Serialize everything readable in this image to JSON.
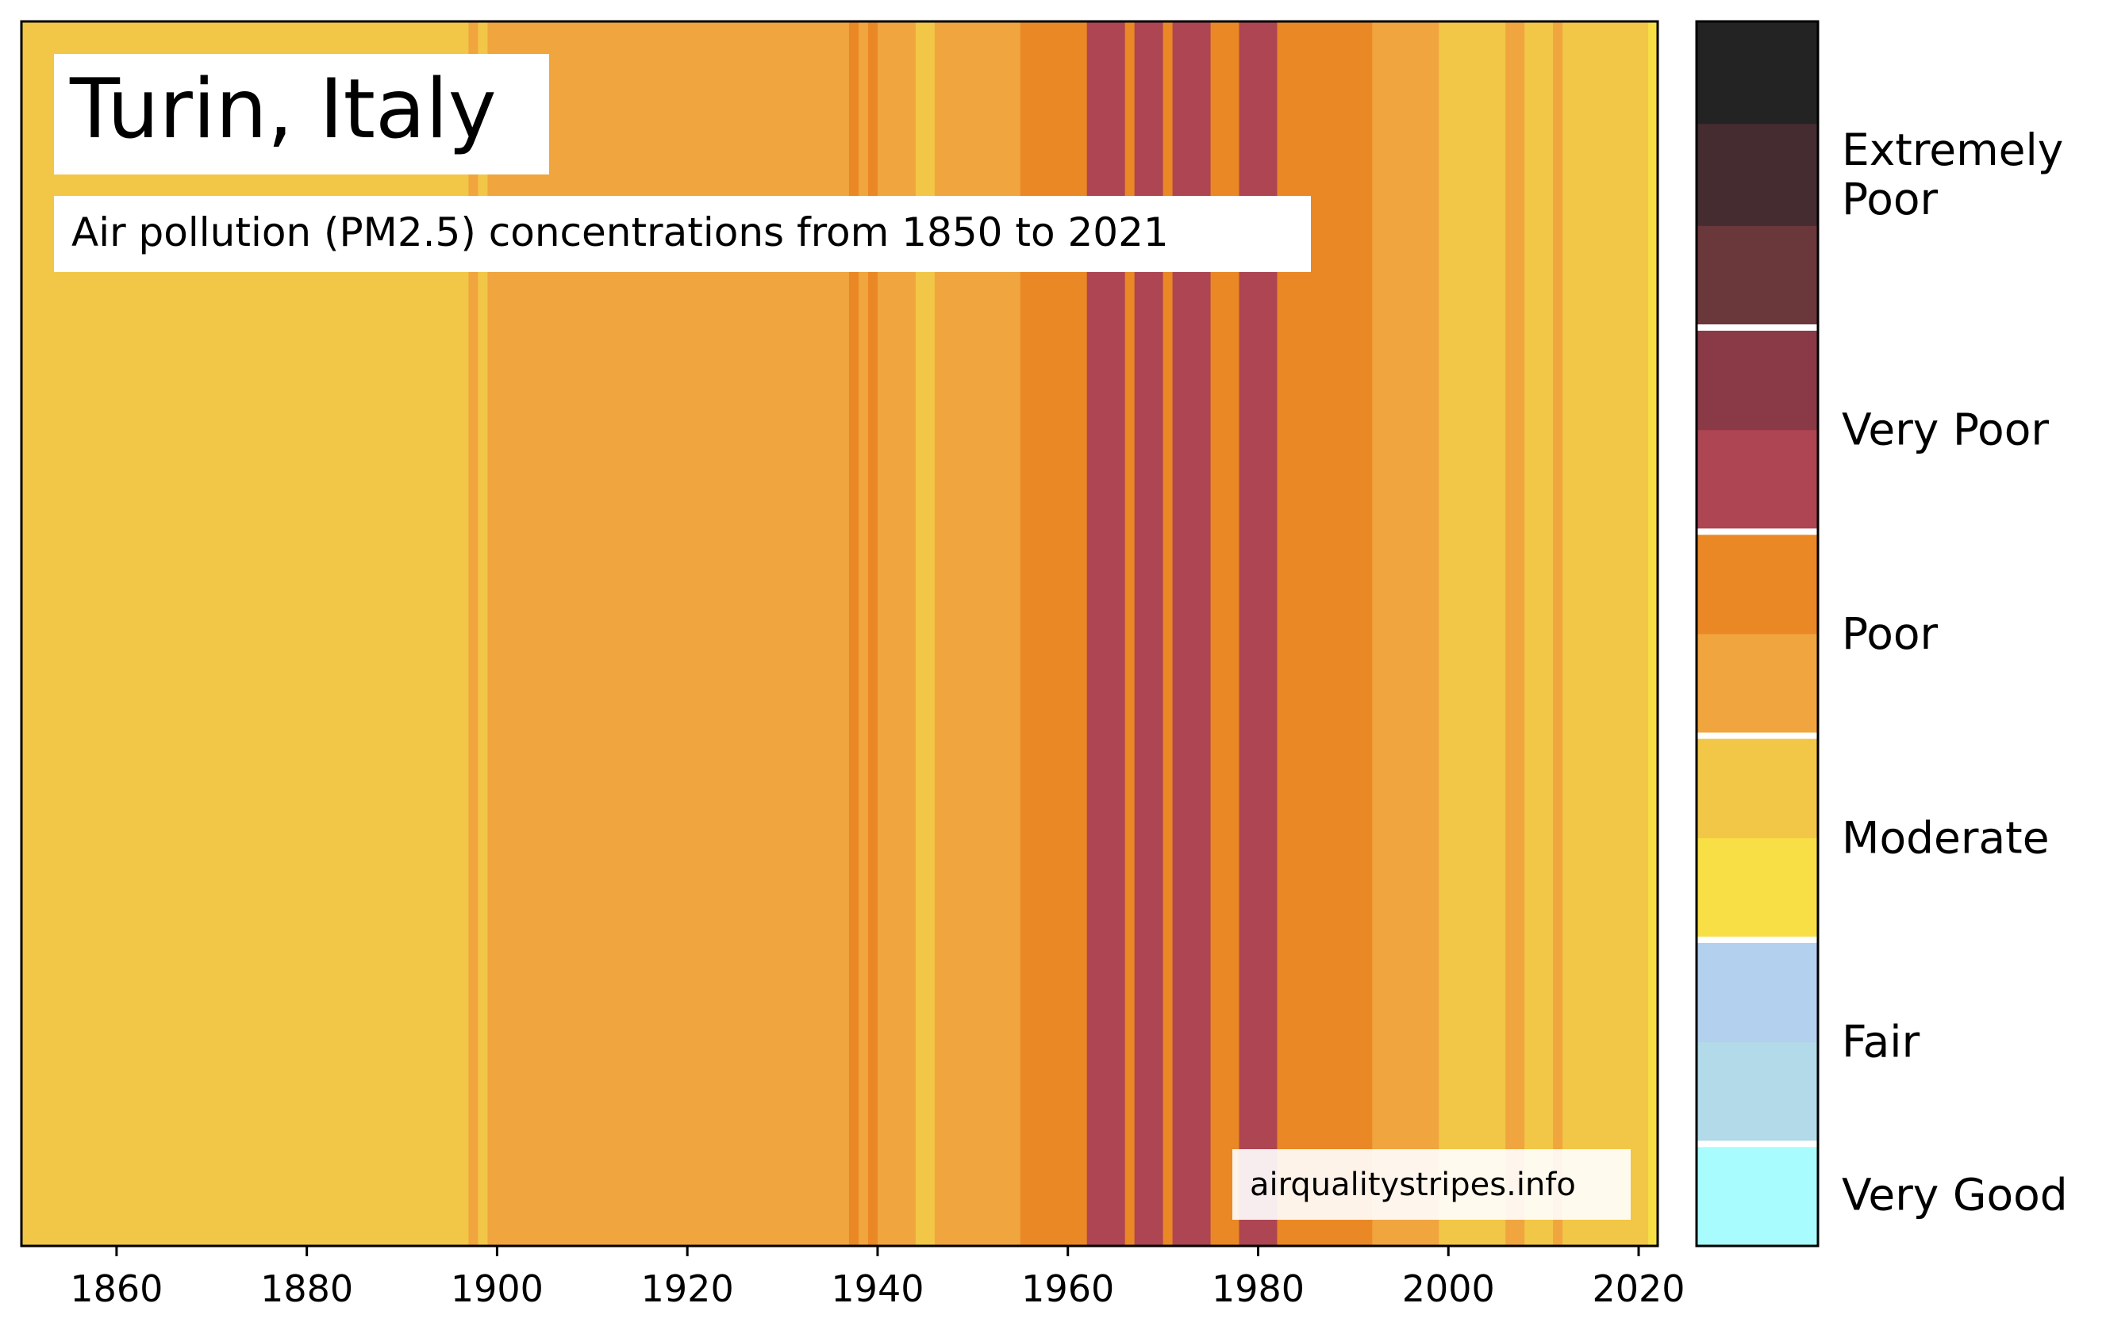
{
  "chart_data": {
    "type": "heatmap",
    "title": "Turin, Italy",
    "subtitle": "Air pollution (PM2.5) concentrations from 1850 to 2021",
    "watermark": "airqualitystripes.info",
    "xlim": [
      1850,
      2022
    ],
    "x_ticks": [
      1860,
      1880,
      1900,
      1920,
      1940,
      1960,
      1980,
      2000,
      2020
    ],
    "stripes": [
      {
        "start": 1850,
        "end": 1897,
        "category": "Moderate",
        "color": "#f2c647"
      },
      {
        "start": 1897,
        "end": 1898,
        "category": "Poor",
        "color": "#f0a53f"
      },
      {
        "start": 1898,
        "end": 1899,
        "category": "Moderate",
        "color": "#f2c647"
      },
      {
        "start": 1899,
        "end": 1937,
        "category": "Poor",
        "color": "#f0a53f"
      },
      {
        "start": 1937,
        "end": 1938,
        "category": "Poor",
        "color": "#e98825"
      },
      {
        "start": 1938,
        "end": 1939,
        "category": "Poor",
        "color": "#f0a53f"
      },
      {
        "start": 1939,
        "end": 1940,
        "category": "Poor",
        "color": "#e98825"
      },
      {
        "start": 1940,
        "end": 1944,
        "category": "Poor",
        "color": "#f0a53f"
      },
      {
        "start": 1944,
        "end": 1946,
        "category": "Moderate",
        "color": "#f2c647"
      },
      {
        "start": 1946,
        "end": 1955,
        "category": "Poor",
        "color": "#f0a53f"
      },
      {
        "start": 1955,
        "end": 1962,
        "category": "Poor",
        "color": "#e98825"
      },
      {
        "start": 1962,
        "end": 1966,
        "category": "Very Poor",
        "color": "#ad4553"
      },
      {
        "start": 1966,
        "end": 1967,
        "category": "Poor",
        "color": "#e98825"
      },
      {
        "start": 1967,
        "end": 1970,
        "category": "Very Poor",
        "color": "#ad4553"
      },
      {
        "start": 1970,
        "end": 1971,
        "category": "Poor",
        "color": "#e98825"
      },
      {
        "start": 1971,
        "end": 1975,
        "category": "Very Poor",
        "color": "#ad4553"
      },
      {
        "start": 1975,
        "end": 1978,
        "category": "Poor",
        "color": "#e98825"
      },
      {
        "start": 1978,
        "end": 1982,
        "category": "Very Poor",
        "color": "#ad4553"
      },
      {
        "start": 1982,
        "end": 1992,
        "category": "Poor",
        "color": "#e98825"
      },
      {
        "start": 1992,
        "end": 1999,
        "category": "Poor",
        "color": "#f0a53f"
      },
      {
        "start": 1999,
        "end": 2006,
        "category": "Moderate",
        "color": "#f2c647"
      },
      {
        "start": 2006,
        "end": 2008,
        "category": "Poor",
        "color": "#f0a53f"
      },
      {
        "start": 2008,
        "end": 2011,
        "category": "Moderate",
        "color": "#f2c647"
      },
      {
        "start": 2011,
        "end": 2012,
        "category": "Poor",
        "color": "#f0a53f"
      },
      {
        "start": 2012,
        "end": 2021,
        "category": "Moderate",
        "color": "#f2c647"
      },
      {
        "start": 2021,
        "end": 2022,
        "category": "Moderate",
        "color": "#f7df45"
      }
    ],
    "colorbar": {
      "bands": [
        "#a8fcfd",
        "#b2dae9",
        "#b3d0ee",
        "#f7df45",
        "#f2c647",
        "#f0a53f",
        "#e98825",
        "#ad4553",
        "#8a3947",
        "#6a373b",
        "#442c30",
        "#232323"
      ],
      "categories": [
        {
          "label": "Very Good",
          "bands": [
            0,
            0
          ]
        },
        {
          "label": "Fair",
          "bands": [
            1,
            2
          ]
        },
        {
          "label": "Moderate",
          "bands": [
            3,
            4
          ]
        },
        {
          "label": "Poor",
          "bands": [
            5,
            6
          ]
        },
        {
          "label": "Very Poor",
          "bands": [
            7,
            8
          ]
        },
        {
          "label": "Extremely\nPoor",
          "bands": [
            9,
            11
          ]
        }
      ]
    }
  }
}
